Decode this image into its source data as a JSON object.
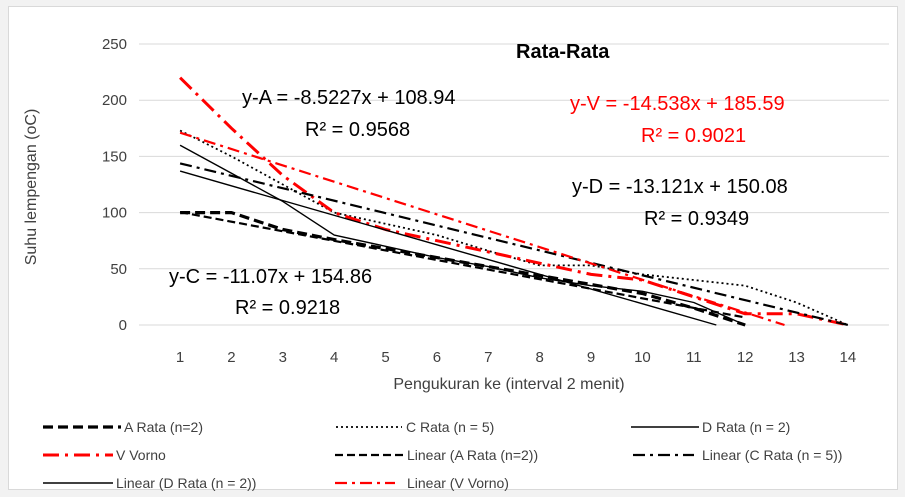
{
  "chart_data": {
    "type": "line",
    "title": "Rata-Rata",
    "xlabel": "Pengukuran ke (interval 2 menit)",
    "ylabel": "Suhu lempengan (oC)",
    "xlim": [
      0.2,
      14.8
    ],
    "ylim": [
      0,
      250
    ],
    "x_ticks": [
      1,
      2,
      3,
      4,
      5,
      6,
      7,
      8,
      9,
      10,
      11,
      12,
      13,
      14
    ],
    "y_ticks": [
      0,
      50,
      100,
      150,
      200,
      250
    ],
    "grid": "horizontal",
    "legend_position": "bottom",
    "series": [
      {
        "name": "A Rata (n=2)",
        "style": "dash-thick",
        "color": "#000000",
        "x": [
          1,
          2,
          3,
          4,
          5,
          6,
          7,
          8,
          9,
          10,
          11,
          12
        ],
        "y": [
          100,
          100,
          85,
          76,
          68,
          60,
          52,
          44,
          36,
          28,
          15,
          0
        ]
      },
      {
        "name": "C Rata (n = 5)",
        "style": "dot",
        "color": "#000000",
        "x": [
          1,
          2,
          3,
          4,
          5,
          6,
          7,
          8,
          9,
          10,
          11,
          12,
          13,
          14
        ],
        "y": [
          173,
          150,
          125,
          100,
          90,
          80,
          66,
          53,
          53,
          45,
          40,
          35,
          20,
          0
        ]
      },
      {
        "name": "D Rata (n = 2)",
        "style": "solid",
        "color": "#000000",
        "x": [
          1,
          2,
          3,
          4,
          5,
          6,
          7,
          8,
          9,
          10,
          11,
          12
        ],
        "y": [
          160,
          135,
          110,
          80,
          70,
          60,
          52,
          42,
          35,
          30,
          20,
          0
        ]
      },
      {
        "name": "V Vorno",
        "style": "dashdot-thick",
        "color": "#ff0000",
        "x": [
          1,
          2,
          3,
          4,
          5,
          6,
          7,
          8,
          9,
          10,
          11,
          12,
          13,
          14
        ],
        "y": [
          220,
          175,
          133,
          100,
          85,
          75,
          65,
          55,
          45,
          40,
          25,
          10,
          10,
          0
        ]
      },
      {
        "name": "Linear (A Rata (n=2))",
        "style": "dash",
        "color": "#000000",
        "x": [
          1,
          12
        ],
        "y": [
          100.4173,
          6.6676
        ]
      },
      {
        "name": "Linear (C Rata (n = 5))",
        "style": "dashdot",
        "color": "#000000",
        "x": [
          1,
          14
        ],
        "y": [
          143.79,
          0
        ]
      },
      {
        "name": "Linear (D Rata (n = 2))",
        "style": "solid",
        "color": "#000000",
        "x": [
          1,
          11.4383
        ],
        "y": [
          136.959,
          0
        ]
      },
      {
        "name": "Linear (V Vorno)",
        "style": "dashdot",
        "color": "#ff0000",
        "x": [
          1,
          12.766
        ],
        "y": [
          171.052,
          0
        ]
      }
    ],
    "annotations": [
      {
        "id": "eq-a",
        "line1": "y-A = -8.5227x + 108.94",
        "line2": "R² = 0.9568",
        "color": "#000000"
      },
      {
        "id": "eq-v",
        "line1": "y-V = -14.538x + 185.59",
        "line2": "R² = 0.9021",
        "color": "#ff0000"
      },
      {
        "id": "eq-d",
        "line1": "y-D = -13.121x + 150.08",
        "line2": "R² = 0.9349",
        "color": "#000000"
      },
      {
        "id": "eq-c",
        "line1": "y-C = -11.07x + 154.86",
        "line2": "R² = 0.9218",
        "color": "#000000"
      }
    ]
  }
}
